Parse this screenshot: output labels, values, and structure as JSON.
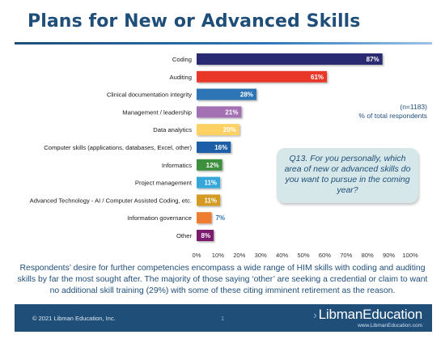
{
  "slide": {
    "title": "Plans for New or Advanced Skills",
    "note_line1": "(n=1183)",
    "note_line2": "% of total respondents",
    "question": "Q13. For you personally, which area of new or advanced skills do you want to pursue in the coming year?",
    "summary": "Respondents’ desire for further competencies encompass a wide range of HIM skills with coding and auditing skills by far the most sought after.  The majority of those saying ‘other’ are seeking a credential or claim to want no additional skill training (29%) with some of these citing imminent retirement as the reason.",
    "footer": {
      "copyright": "© 2021 Libman Education, Inc.",
      "page": "1",
      "brand": "LibmanEducation",
      "url": "www.LibmanEducation.com"
    }
  },
  "colors": {
    "title": "#1f4e79",
    "footer": "#1f4e79",
    "question_box": "#d5e7e8"
  },
  "chart_data": {
    "type": "bar",
    "orientation": "horizontal",
    "categories": [
      "Coding",
      "Auditing",
      "Clinical documentation integrity",
      "Management / leadership",
      "Data analytics",
      "Computer skills (applications, databases, Excel, other)",
      "Informatics",
      "Project management",
      "Advanced Technology - AI / Computer Assisted Coding, etc.",
      "Information governance",
      "Other"
    ],
    "values": [
      87,
      61,
      28,
      21,
      20,
      16,
      12,
      11,
      11,
      7,
      8
    ],
    "data_labels": [
      "87%",
      "61%",
      "28%",
      "21%",
      "20%",
      "16%",
      "12%",
      "11%",
      "11%",
      "7%",
      "8%"
    ],
    "label_outside": [
      false,
      false,
      false,
      false,
      false,
      false,
      false,
      false,
      false,
      true,
      false
    ],
    "colors": [
      "#2b2a72",
      "#e8372c",
      "#2e75b6",
      "#a371b3",
      "#fdd264",
      "#1f5ea8",
      "#3d8f3d",
      "#35a6d8",
      "#d49a24",
      "#ee7d31",
      "#7b1c6e"
    ],
    "label_colors": [
      "#ffffff",
      "#ffffff",
      "#ffffff",
      "#ffffff",
      "#ffffff",
      "#ffffff",
      "#ffffff",
      "#ffffff",
      "#ffffff",
      "#2e75b6",
      "#ffffff"
    ],
    "xlim": [
      0,
      100
    ],
    "xticks": [
      "0%",
      "10%",
      "20%",
      "30%",
      "40%",
      "50%",
      "60%",
      "70%",
      "80%",
      "90%",
      "100%"
    ],
    "grid": false,
    "legend": "none"
  }
}
